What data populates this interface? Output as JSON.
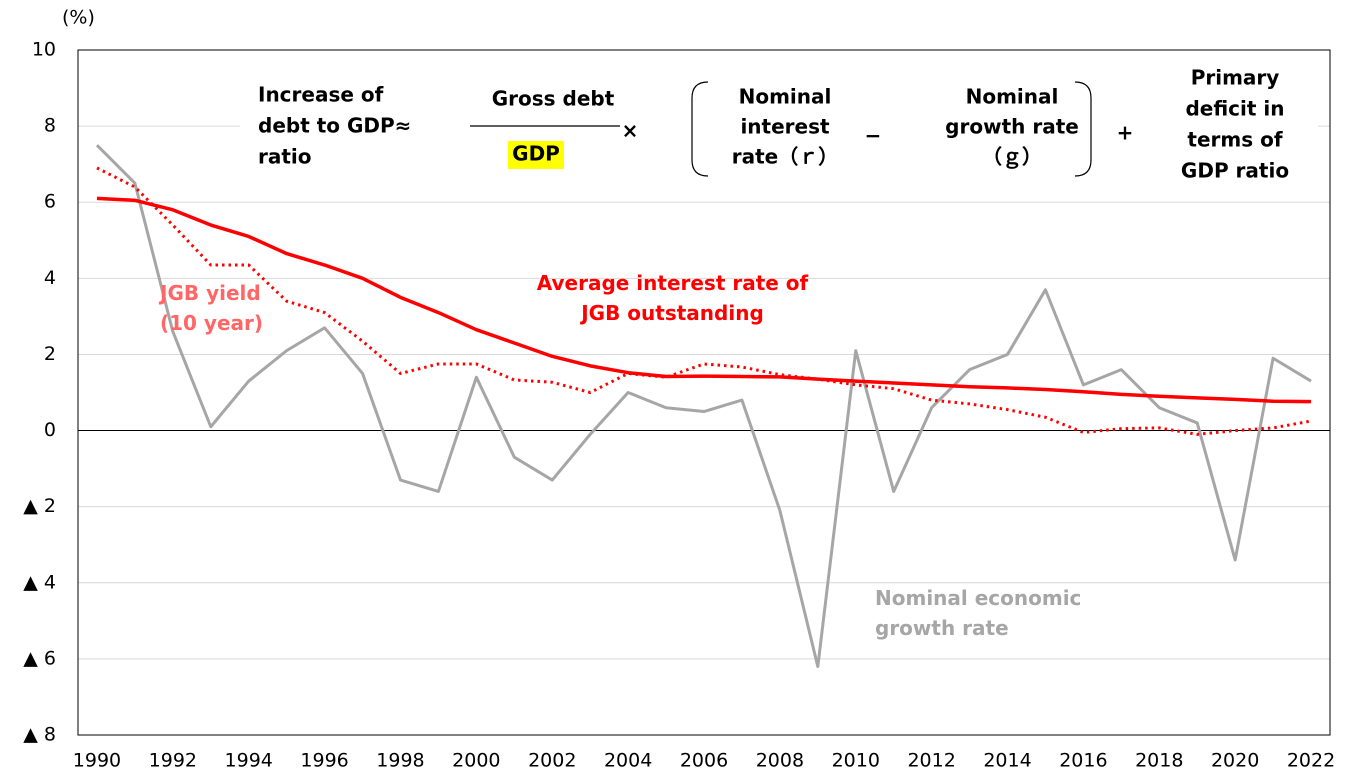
{
  "chart_data": {
    "type": "line",
    "y_unit_label": "(%)",
    "x": [
      1990,
      1991,
      1992,
      1993,
      1994,
      1995,
      1996,
      1997,
      1998,
      1999,
      2000,
      2001,
      2002,
      2003,
      2004,
      2005,
      2006,
      2007,
      2008,
      2009,
      2010,
      2011,
      2012,
      2013,
      2014,
      2015,
      2016,
      2017,
      2018,
      2019,
      2020,
      2021,
      2022
    ],
    "xlim": [
      1989.5,
      2022.5
    ],
    "xticks": [
      1990,
      1992,
      1994,
      1996,
      1998,
      2000,
      2002,
      2004,
      2006,
      2008,
      2010,
      2012,
      2014,
      2016,
      2018,
      2020,
      2022
    ],
    "ylim": [
      -8,
      10
    ],
    "yticks": [
      10,
      8,
      6,
      4,
      2,
      0,
      {
        "value": -2,
        "label": "▲ 2"
      },
      {
        "value": -4,
        "label": "▲ 4"
      },
      {
        "value": -6,
        "label": "▲ 6"
      },
      {
        "value": -8,
        "label": "▲ 8"
      }
    ],
    "grid": true,
    "series": [
      {
        "name": "Nominal economic growth rate",
        "color": "#a6a6a6",
        "label_color": "#a6a6a6",
        "dash": "solid",
        "values": [
          7.5,
          6.5,
          2.6,
          0.1,
          1.3,
          2.1,
          2.7,
          1.5,
          -1.3,
          -1.6,
          1.4,
          -0.7,
          -1.3,
          -0.1,
          1.0,
          0.6,
          0.5,
          0.8,
          -2.1,
          -6.2,
          2.1,
          -1.6,
          0.6,
          1.6,
          2.0,
          3.7,
          1.2,
          1.6,
          0.6,
          0.2,
          -3.4,
          1.9,
          1.3
        ]
      },
      {
        "name": "JGB yield (10 year)",
        "color": "#ff0000",
        "label_color": "#ff6666",
        "dash": "dotted",
        "values": [
          6.9,
          6.4,
          5.4,
          4.35,
          4.35,
          3.4,
          3.1,
          2.35,
          1.5,
          1.75,
          1.75,
          1.33,
          1.27,
          1.0,
          1.5,
          1.4,
          1.75,
          1.67,
          1.47,
          1.35,
          1.2,
          1.1,
          0.8,
          0.7,
          0.55,
          0.35,
          -0.05,
          0.05,
          0.07,
          -0.1,
          0.0,
          0.07,
          0.25
        ]
      },
      {
        "name": "Average interest rate of JGB outstanding",
        "color": "#ff0000",
        "label_color": "#ff0000",
        "dash": "solid",
        "values": [
          6.1,
          6.05,
          5.8,
          5.4,
          5.1,
          4.65,
          4.35,
          4.0,
          3.5,
          3.1,
          2.65,
          2.3,
          1.95,
          1.7,
          1.52,
          1.42,
          1.43,
          1.42,
          1.41,
          1.35,
          1.3,
          1.25,
          1.2,
          1.15,
          1.12,
          1.08,
          1.02,
          0.95,
          0.9,
          0.86,
          0.82,
          0.77,
          0.76
        ]
      }
    ],
    "formula": {
      "lhs": [
        "Increase of",
        "debt to GDP≈",
        "ratio"
      ],
      "numerator": "Gross debt",
      "denominator": "GDP",
      "times": "×",
      "r": [
        "Nominal",
        "interest",
        "rate（ｒ）"
      ],
      "minus": "−",
      "g": [
        "Nominal",
        "growth rate",
        "（ｇ）"
      ],
      "plus": "+",
      "pd": [
        "Primary",
        "deficit in",
        "terms of",
        "GDP ratio"
      ]
    }
  }
}
